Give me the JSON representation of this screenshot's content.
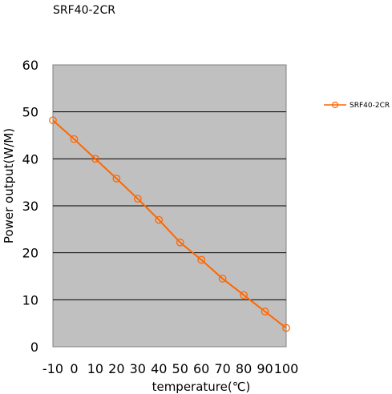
{
  "chart_data": {
    "type": "line",
    "title": "SRF40-2CR",
    "xlabel": "temperature(℃)",
    "ylabel": "Power output(W/M)",
    "x": [
      -10,
      0,
      10,
      20,
      30,
      40,
      50,
      60,
      70,
      80,
      90,
      100
    ],
    "xlim": [
      -10,
      100
    ],
    "ylim": [
      0,
      60
    ],
    "yticks": [
      0,
      10,
      20,
      30,
      40,
      50,
      60
    ],
    "grid": "horizontal",
    "legend": "right",
    "plot_background": "#c0c0c0",
    "series": [
      {
        "name": "SRF40-2CR",
        "color": "#ff6600",
        "marker": "open-circle",
        "values": [
          48.2,
          44.2,
          40.0,
          35.8,
          31.5,
          27.0,
          22.2,
          18.5,
          14.5,
          11.0,
          7.5,
          4.0
        ]
      }
    ]
  }
}
